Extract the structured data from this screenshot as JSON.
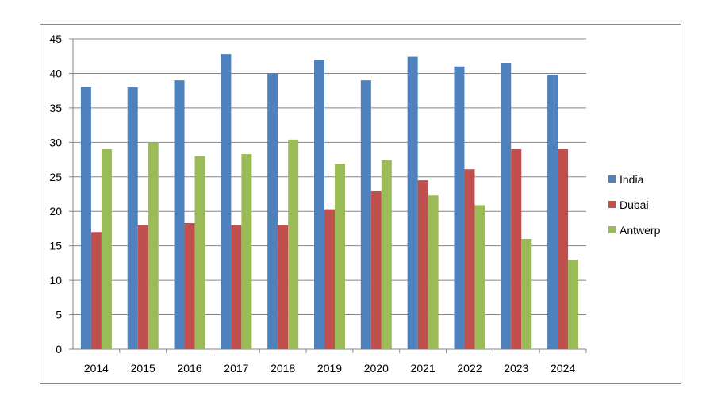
{
  "chart_data": {
    "type": "bar",
    "title": "",
    "xlabel": "",
    "ylabel": "",
    "ylim": [
      0,
      45
    ],
    "yticks": [
      0,
      5,
      10,
      15,
      20,
      25,
      30,
      35,
      40,
      45
    ],
    "grid": true,
    "legend_position": "right",
    "categories": [
      "2014",
      "2015",
      "2016",
      "2017",
      "2018",
      "2019",
      "2020",
      "2021",
      "2022",
      "2023",
      "2024"
    ],
    "series": [
      {
        "name": "India",
        "color": "#4F81BD",
        "values": [
          38,
          38,
          39,
          42.8,
          40,
          42,
          39,
          42.4,
          41,
          41.5,
          39.8
        ]
      },
      {
        "name": "Dubai",
        "color": "#C0504D",
        "values": [
          17,
          18,
          18.3,
          18,
          18,
          20.3,
          22.9,
          24.5,
          26.1,
          29,
          29
        ]
      },
      {
        "name": "Antwerp",
        "color": "#9BBB59",
        "values": [
          29,
          30,
          28,
          28.3,
          30.4,
          26.9,
          27.4,
          22.3,
          20.9,
          16,
          13
        ]
      }
    ]
  }
}
